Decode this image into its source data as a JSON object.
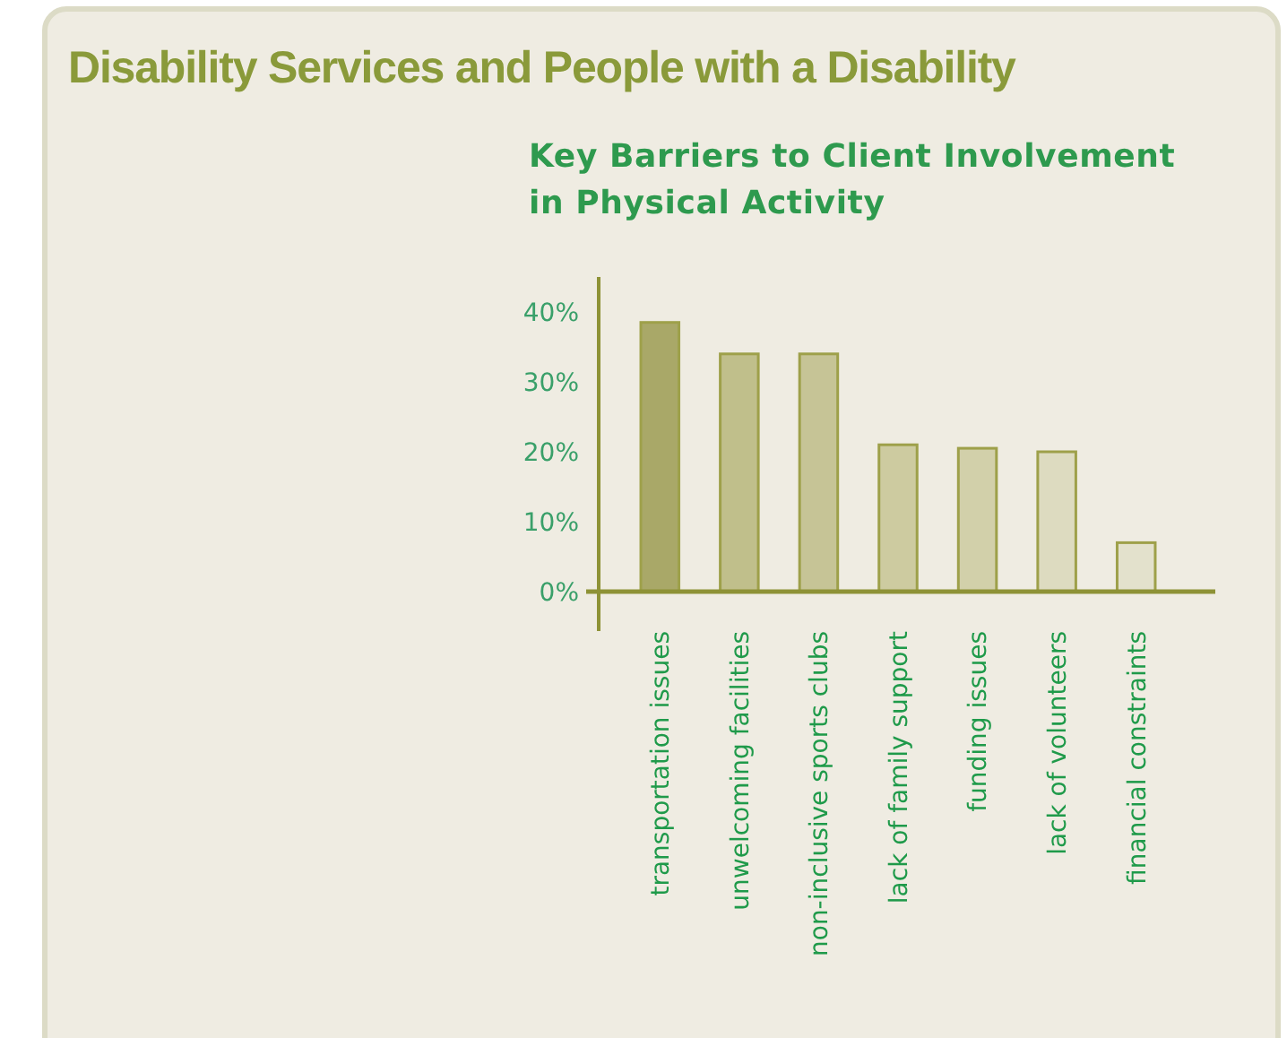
{
  "chart_data": {
    "type": "bar",
    "title": "Key Barriers to Client Involvement in Physical Activity",
    "subtitle": "Disability Services and People with a Disability",
    "categories": [
      "transportation issues",
      "unwelcoming facilities",
      "non-inclusive sports clubs",
      "lack of family support",
      "funding issues",
      "lack of volunteers",
      "financial constraints"
    ],
    "values": [
      38.5,
      34,
      34,
      21,
      20.5,
      20,
      7
    ],
    "colors": [
      "#a9a868",
      "#c0bf8b",
      "#c6c496",
      "#cdcba0",
      "#d2d0aa",
      "#dddbc0",
      "#e3e1cc"
    ],
    "ylim": [
      0,
      45
    ],
    "yticks": [
      {
        "value": 0,
        "label": "0%"
      },
      {
        "value": 10,
        "label": "10%"
      },
      {
        "value": 20,
        "label": "20%"
      },
      {
        "value": 30,
        "label": "30%"
      },
      {
        "value": 40,
        "label": "40%"
      }
    ],
    "grid": false
  }
}
